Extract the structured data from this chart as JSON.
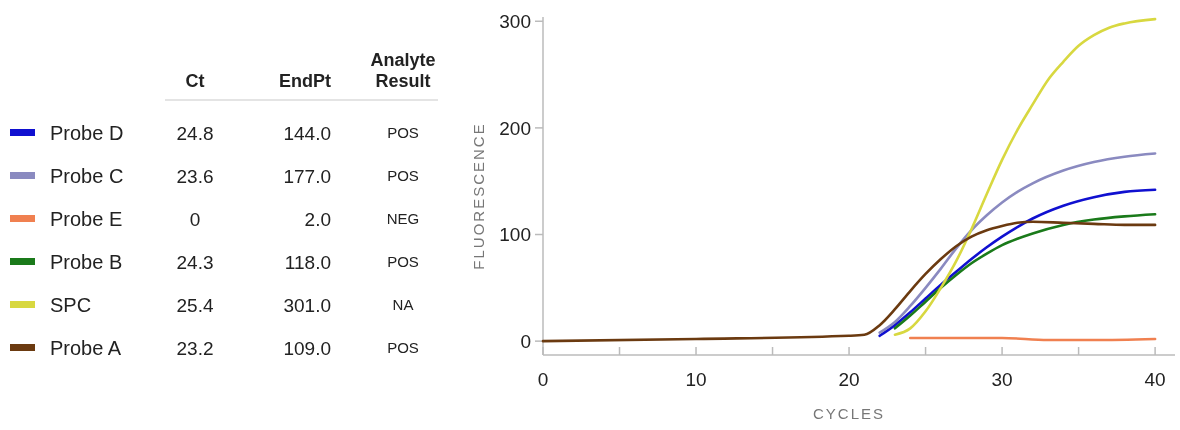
{
  "chart_data": {
    "type": "line",
    "xlabel": "CYCLES",
    "ylabel": "FLUORESCENCE",
    "xlim": [
      0,
      41.3
    ],
    "ylim": [
      -13,
      304
    ],
    "xticks": [
      0,
      {
        "value": 5,
        "label": null
      },
      10,
      {
        "value": 15,
        "label": null
      },
      20,
      {
        "value": 25,
        "label": null
      },
      30,
      {
        "value": 35,
        "label": null
      },
      40
    ],
    "yticks": [
      0,
      100,
      200,
      300
    ],
    "legend": "left",
    "annotations": [
      "Ct",
      "EndPt",
      "Analyte Result",
      "24.8",
      "144.0",
      "POS",
      "23.6",
      "177.0",
      "POS",
      "0",
      "2.0",
      "NEG",
      "24.3",
      "118.0",
      "POS",
      "25.4",
      "301.0",
      "NA",
      "23.2",
      "109.0",
      "POS"
    ],
    "series": [
      {
        "name": "Probe D",
        "color": "#1010d0",
        "x": [
          22,
          23,
          24,
          25,
          26,
          27,
          28,
          29,
          30,
          31,
          32,
          34,
          36,
          38,
          40
        ],
        "values": [
          5,
          15,
          27,
          40,
          53,
          65,
          77,
          88,
          98,
          107,
          115,
          127,
          135,
          140,
          142
        ]
      },
      {
        "name": "Probe C",
        "color": "#8a8ac0",
        "x": [
          22,
          23,
          24,
          25,
          26,
          27,
          28,
          29,
          30,
          31,
          32,
          34,
          36,
          38,
          40
        ],
        "values": [
          8,
          18,
          33,
          50,
          68,
          87,
          104,
          118,
          130,
          140,
          148,
          160,
          168,
          173,
          176
        ]
      },
      {
        "name": "Probe E",
        "color": "#f08050",
        "x": [
          24,
          27,
          30,
          33,
          36,
          40
        ],
        "values": [
          3,
          3,
          3,
          1,
          1,
          2
        ]
      },
      {
        "name": "Probe B",
        "color": "#1a7a1a",
        "x": [
          23,
          24,
          25,
          26,
          27,
          28,
          29,
          30,
          31,
          32,
          34,
          36,
          38,
          40
        ],
        "values": [
          12,
          24,
          37,
          50,
          62,
          73,
          82,
          90,
          96,
          101,
          109,
          114,
          117,
          119
        ]
      },
      {
        "name": "SPC",
        "color": "#d8d840",
        "x": [
          23,
          24,
          25,
          26,
          27,
          28,
          29,
          30,
          31,
          32,
          33,
          34,
          35,
          36,
          37,
          38,
          40
        ],
        "values": [
          6,
          12,
          28,
          50,
          75,
          105,
          138,
          170,
          198,
          222,
          245,
          262,
          277,
          287,
          294,
          298,
          302
        ]
      },
      {
        "name": "Probe A",
        "color": "#6b3a10",
        "x": [
          0,
          10,
          20,
          21,
          22,
          23,
          24,
          25,
          26,
          27,
          28,
          29,
          30,
          31,
          32,
          34,
          36,
          38,
          40
        ],
        "values": [
          0,
          2,
          5,
          6,
          15,
          30,
          47,
          63,
          77,
          89,
          98,
          104,
          108,
          111,
          112,
          111,
          110,
          109,
          109
        ]
      }
    ]
  }
}
